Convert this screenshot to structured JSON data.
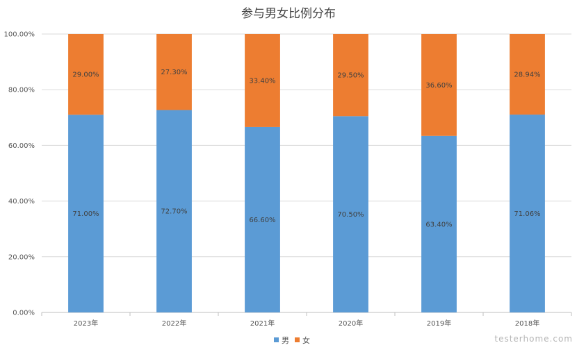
{
  "chart_data": {
    "type": "bar",
    "stacked": true,
    "title": "参与男女比例分布",
    "categories": [
      "2023年",
      "2022年",
      "2021年",
      "2020年",
      "2019年",
      "2018年"
    ],
    "series": [
      {
        "name": "男",
        "values": [
          71.0,
          72.7,
          66.6,
          70.5,
          63.4,
          71.06
        ],
        "labels": [
          "71.00%",
          "72.70%",
          "66.60%",
          "70.50%",
          "63.40%",
          "71.06%"
        ]
      },
      {
        "name": "女",
        "values": [
          29.0,
          27.3,
          33.4,
          29.5,
          36.6,
          28.94
        ],
        "labels": [
          "29.00%",
          "27.30%",
          "33.40%",
          "29.50%",
          "36.60%",
          "28.94%"
        ]
      }
    ],
    "yticks": [
      "0.00%",
      "20.00%",
      "40.00%",
      "60.00%",
      "80.00%",
      "100.00%"
    ],
    "ylim": [
      0,
      100
    ],
    "grid": true,
    "legend_position": "bottom",
    "colors": {
      "男": "#5b9bd5",
      "女": "#ed7d31"
    }
  },
  "watermark": "testerhome.com"
}
